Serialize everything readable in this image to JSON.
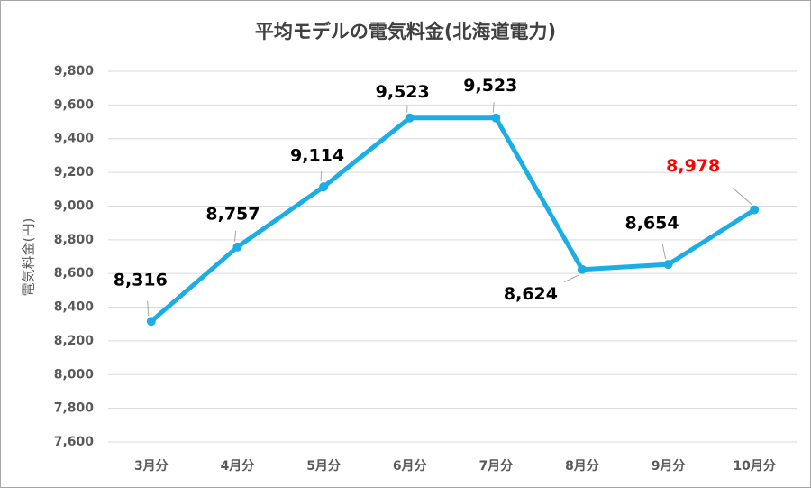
{
  "chart_data": {
    "type": "line",
    "title": "平均モデルの電気料金(北海道電力)",
    "y_label": "電気料金(円)",
    "categories": [
      "3月分",
      "4月分",
      "5月分",
      "6月分",
      "7月分",
      "8月分",
      "9月分",
      "10月分"
    ],
    "series": [
      {
        "name": "電気料金",
        "color": "#1aaee5",
        "values": [
          8316,
          8757,
          9114,
          9523,
          9523,
          8624,
          8654,
          8978
        ],
        "value_labels": [
          "8,316",
          "8,757",
          "9,114",
          "9,523",
          "9,523",
          "8,624",
          "8,654",
          "8,978"
        ],
        "value_label_colors": [
          "#000000",
          "#000000",
          "#000000",
          "#000000",
          "#000000",
          "#000000",
          "#000000",
          "#ff0000"
        ]
      }
    ],
    "ylim": [
      7600,
      9800
    ],
    "yticks": [
      {
        "value": 7600,
        "label": "7,600"
      },
      {
        "value": 7800,
        "label": "7,800"
      },
      {
        "value": 8000,
        "label": "8,000"
      },
      {
        "value": 8200,
        "label": "8,200"
      },
      {
        "value": 8400,
        "label": "8,400"
      },
      {
        "value": 8600,
        "label": "8,600"
      },
      {
        "value": 8800,
        "label": "8,800"
      },
      {
        "value": 9000,
        "label": "9,000"
      },
      {
        "value": 9200,
        "label": "9,200"
      },
      {
        "value": 9400,
        "label": "9,400"
      },
      {
        "value": 9600,
        "label": "9,600"
      },
      {
        "value": 9800,
        "label": "9,800"
      }
    ],
    "grid": true
  }
}
